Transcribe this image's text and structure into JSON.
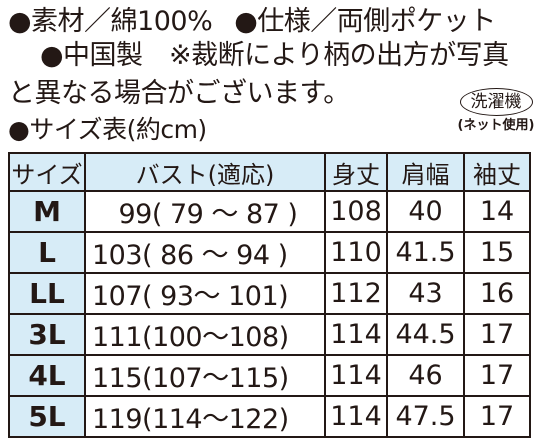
{
  "spec": {
    "line1_a": "●素材／綿100%",
    "line1_b": "●仕様／両側ポケット",
    "line2": "●中国製　※裁断により柄の出方が写真",
    "line3": "と異なる場合がございます。",
    "size_heading": "●サイズ表(約cm)"
  },
  "wash": {
    "label": "洗濯機",
    "note": "(ネット使用)"
  },
  "size_table": {
    "headers": [
      "サイズ",
      "バスト(適応)",
      "身丈",
      "肩幅",
      "袖丈"
    ],
    "rows": [
      [
        "M",
        "　99( 79 ～ 87 )",
        "108",
        "40",
        "14"
      ],
      [
        "L",
        "103( 86 ～ 94 )",
        "110",
        "41.5",
        "15"
      ],
      [
        "LL",
        "107( 93～ 101)",
        "112",
        "43",
        "16"
      ],
      [
        "3L",
        "111(100～108)",
        "114",
        "44.5",
        "17"
      ],
      [
        "4L",
        "115(107～115)",
        "114",
        "46",
        "17"
      ],
      [
        "5L",
        "119(114～122)",
        "114",
        "47.5",
        "17"
      ]
    ]
  }
}
